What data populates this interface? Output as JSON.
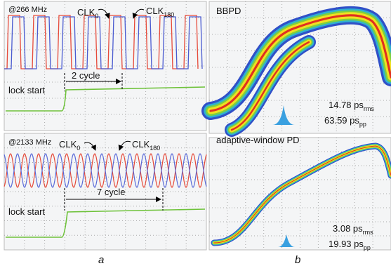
{
  "panel_a": {
    "top": {
      "freq": "@266 MHz",
      "clk0": {
        "base": "CLK",
        "sub": "0"
      },
      "clk180": {
        "base": "CLK",
        "sub": "180"
      },
      "cycles": "2 cycle",
      "lock": "lock start"
    },
    "bottom": {
      "freq": "@2133 MHz",
      "clk0": {
        "base": "CLK",
        "sub": "0"
      },
      "clk180": {
        "base": "CLK",
        "sub": "180"
      },
      "cycles": "7 cycle",
      "lock": "lock start"
    },
    "label": "a"
  },
  "panel_b": {
    "top": {
      "title": "BBPD",
      "rms": {
        "value": "14.78 ps",
        "sub": "rms"
      },
      "pp": {
        "value": "63.59 ps",
        "sub": "pp"
      }
    },
    "bottom": {
      "title": "adaptive-window PD",
      "rms": {
        "value": "3.08 ps",
        "sub": "rms"
      },
      "pp": {
        "value": "19.93 ps",
        "sub": "pp"
      }
    },
    "label": "b"
  }
}
